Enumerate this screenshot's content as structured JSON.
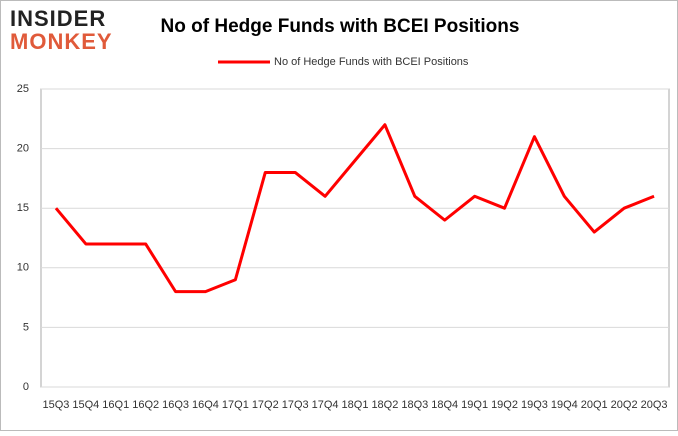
{
  "logo": {
    "line1": "INSIDER",
    "line2": "MONKEY"
  },
  "chart_data": {
    "type": "line",
    "title": "No of Hedge Funds with BCEI Positions",
    "categories": [
      "15Q3",
      "15Q4",
      "16Q1",
      "16Q2",
      "16Q3",
      "16Q4",
      "17Q1",
      "17Q2",
      "17Q3",
      "17Q4",
      "18Q1",
      "18Q2",
      "18Q3",
      "18Q4",
      "19Q1",
      "19Q2",
      "19Q3",
      "19Q4",
      "20Q1",
      "20Q2",
      "20Q3"
    ],
    "series": [
      {
        "name": "No of Hedge Funds with BCEI Positions",
        "color": "#ff0000",
        "values": [
          15,
          12,
          12,
          12,
          8,
          8,
          9,
          18,
          18,
          16,
          19,
          22,
          16,
          14,
          16,
          15,
          21,
          16,
          13,
          15,
          16
        ]
      }
    ],
    "ylim": [
      0,
      25
    ],
    "yticks": [
      0,
      5,
      10,
      15,
      20,
      25
    ],
    "grid": true,
    "legend": "top"
  }
}
